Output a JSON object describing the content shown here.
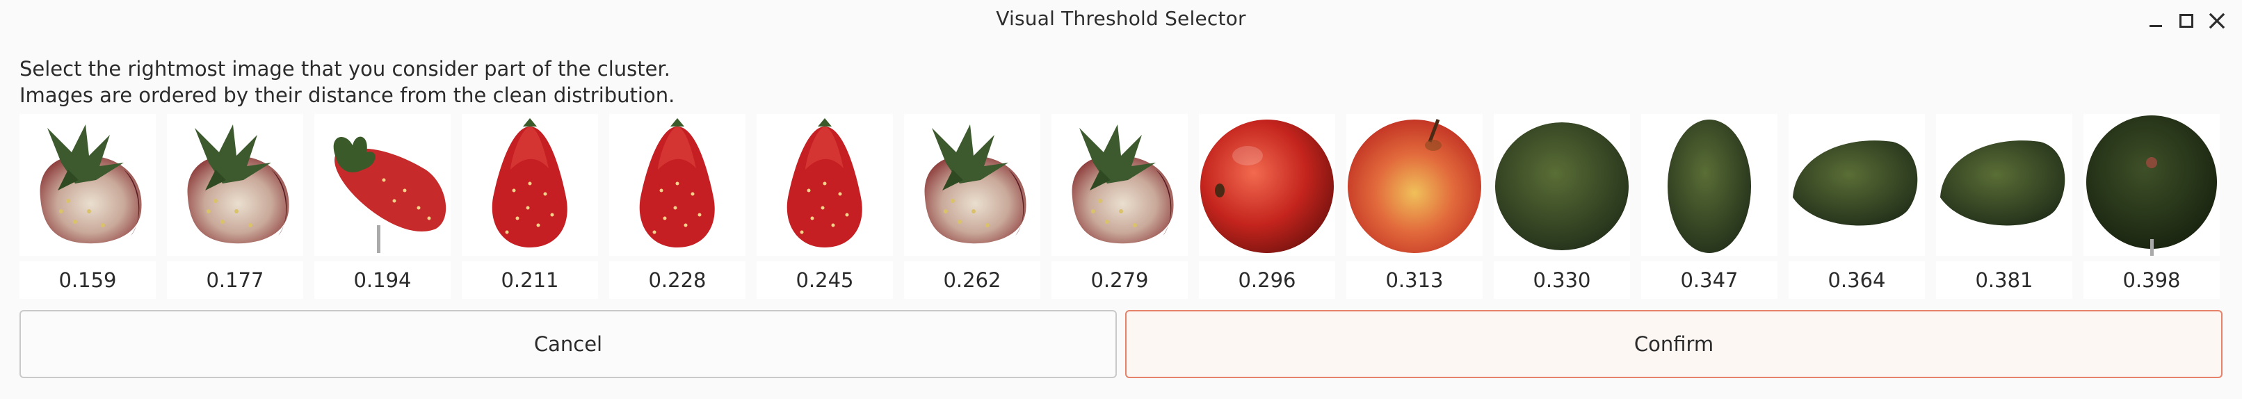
{
  "window": {
    "title": "Visual Threshold Selector",
    "controls": [
      "minimize-icon",
      "maximize-icon",
      "close-icon"
    ]
  },
  "instructions": {
    "line1": "Select the rightmost image that you consider part of the cluster.",
    "line2": "Images are ordered by their distance from the clean distribution."
  },
  "images": [
    {
      "subject": "strawberry-unripe",
      "distance": "0.159"
    },
    {
      "subject": "strawberry-unripe",
      "distance": "0.177"
    },
    {
      "subject": "strawberry-lying",
      "distance": "0.194"
    },
    {
      "subject": "strawberry",
      "distance": "0.211"
    },
    {
      "subject": "strawberry",
      "distance": "0.228"
    },
    {
      "subject": "strawberry",
      "distance": "0.245"
    },
    {
      "subject": "strawberry-unripe",
      "distance": "0.262"
    },
    {
      "subject": "strawberry-unripe",
      "distance": "0.279"
    },
    {
      "subject": "apple-red",
      "distance": "0.296"
    },
    {
      "subject": "apple-red-yellow",
      "distance": "0.313"
    },
    {
      "subject": "avocado",
      "distance": "0.330"
    },
    {
      "subject": "avocado-upright",
      "distance": "0.347"
    },
    {
      "subject": "avocado-lying",
      "distance": "0.364"
    },
    {
      "subject": "avocado-lying",
      "distance": "0.381"
    },
    {
      "subject": "avocado-stem",
      "distance": "0.398"
    }
  ],
  "actions": {
    "cancel_label": "Cancel",
    "confirm_label": "Confirm"
  },
  "colors": {
    "confirm_border": "#e6826a",
    "cancel_border": "#c9c9c9",
    "background": "#fafafa"
  }
}
